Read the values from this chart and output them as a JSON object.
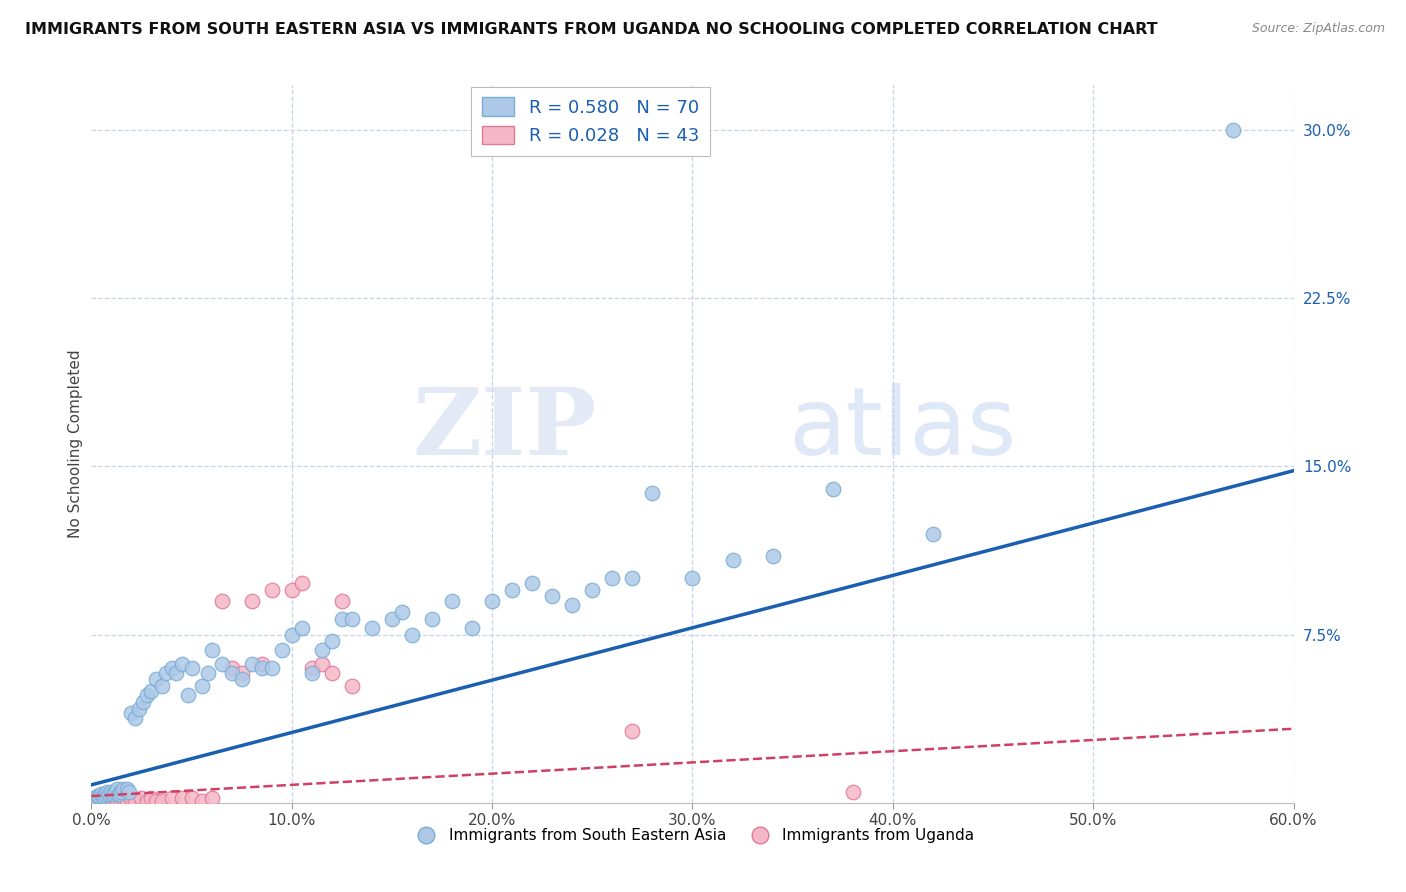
{
  "title": "IMMIGRANTS FROM SOUTH EASTERN ASIA VS IMMIGRANTS FROM UGANDA NO SCHOOLING COMPLETED CORRELATION CHART",
  "source": "Source: ZipAtlas.com",
  "ylabel": "No Schooling Completed",
  "xlim": [
    0.0,
    0.6
  ],
  "ylim": [
    0.0,
    0.32
  ],
  "x_ticks": [
    0.0,
    0.1,
    0.2,
    0.3,
    0.4,
    0.5,
    0.6
  ],
  "x_tick_labels": [
    "0.0%",
    "10.0%",
    "20.0%",
    "30.0%",
    "40.0%",
    "50.0%",
    "60.0%"
  ],
  "y_ticks_right": [
    0.075,
    0.15,
    0.225,
    0.3
  ],
  "y_tick_labels_right": [
    "7.5%",
    "15.0%",
    "22.5%",
    "30.0%"
  ],
  "series1_color": "#aec9e8",
  "series1_edge": "#7aadd4",
  "series2_color": "#f5b8c8",
  "series2_edge": "#e07898",
  "line1_color": "#1a5fb0",
  "line2_color": "#d04060",
  "line1_x0": 0.0,
  "line1_y0": 0.008,
  "line1_x1": 0.6,
  "line1_y1": 0.148,
  "line2_x0": 0.0,
  "line2_y0": 0.003,
  "line2_x1": 0.6,
  "line2_y1": 0.033,
  "R1": 0.58,
  "N1": 70,
  "R2": 0.028,
  "N2": 43,
  "legend_label1": "Immigrants from South Eastern Asia",
  "legend_label2": "Immigrants from Uganda",
  "watermark_zip": "ZIP",
  "watermark_atlas": "atlas",
  "background_color": "#ffffff",
  "grid_color": "#c8d4e8",
  "blue_x": [
    0.002,
    0.003,
    0.004,
    0.005,
    0.006,
    0.007,
    0.008,
    0.009,
    0.01,
    0.011,
    0.012,
    0.013,
    0.014,
    0.015,
    0.016,
    0.018,
    0.019,
    0.02,
    0.022,
    0.024,
    0.026,
    0.028,
    0.03,
    0.032,
    0.035,
    0.037,
    0.04,
    0.042,
    0.045,
    0.048,
    0.05,
    0.055,
    0.058,
    0.06,
    0.065,
    0.07,
    0.075,
    0.08,
    0.085,
    0.09,
    0.095,
    0.1,
    0.105,
    0.11,
    0.115,
    0.12,
    0.125,
    0.13,
    0.14,
    0.15,
    0.155,
    0.16,
    0.17,
    0.18,
    0.19,
    0.2,
    0.21,
    0.22,
    0.23,
    0.24,
    0.25,
    0.26,
    0.27,
    0.28,
    0.3,
    0.32,
    0.34,
    0.37,
    0.42,
    0.57
  ],
  "blue_y": [
    0.002,
    0.003,
    0.003,
    0.004,
    0.003,
    0.004,
    0.005,
    0.004,
    0.005,
    0.004,
    0.005,
    0.006,
    0.004,
    0.005,
    0.006,
    0.006,
    0.005,
    0.04,
    0.038,
    0.042,
    0.045,
    0.048,
    0.05,
    0.055,
    0.052,
    0.058,
    0.06,
    0.058,
    0.062,
    0.048,
    0.06,
    0.052,
    0.058,
    0.068,
    0.062,
    0.058,
    0.055,
    0.062,
    0.06,
    0.06,
    0.068,
    0.075,
    0.078,
    0.058,
    0.068,
    0.072,
    0.082,
    0.082,
    0.078,
    0.082,
    0.085,
    0.075,
    0.082,
    0.09,
    0.078,
    0.09,
    0.095,
    0.098,
    0.092,
    0.088,
    0.095,
    0.1,
    0.1,
    0.138,
    0.1,
    0.108,
    0.11,
    0.14,
    0.12,
    0.3
  ],
  "pink_x": [
    0.001,
    0.002,
    0.003,
    0.004,
    0.005,
    0.006,
    0.007,
    0.008,
    0.009,
    0.01,
    0.011,
    0.012,
    0.013,
    0.015,
    0.016,
    0.018,
    0.02,
    0.022,
    0.025,
    0.028,
    0.03,
    0.032,
    0.035,
    0.04,
    0.045,
    0.05,
    0.055,
    0.06,
    0.065,
    0.07,
    0.075,
    0.08,
    0.085,
    0.09,
    0.1,
    0.105,
    0.11,
    0.115,
    0.12,
    0.125,
    0.13,
    0.27,
    0.38
  ],
  "pink_y": [
    0.001,
    0.001,
    0.001,
    0.001,
    0.001,
    0.001,
    0.001,
    0.001,
    0.001,
    0.001,
    0.001,
    0.002,
    0.001,
    0.001,
    0.002,
    0.001,
    0.002,
    0.001,
    0.002,
    0.001,
    0.002,
    0.001,
    0.001,
    0.002,
    0.002,
    0.002,
    0.001,
    0.002,
    0.09,
    0.06,
    0.058,
    0.09,
    0.062,
    0.095,
    0.095,
    0.098,
    0.06,
    0.062,
    0.058,
    0.09,
    0.052,
    0.032,
    0.005
  ]
}
